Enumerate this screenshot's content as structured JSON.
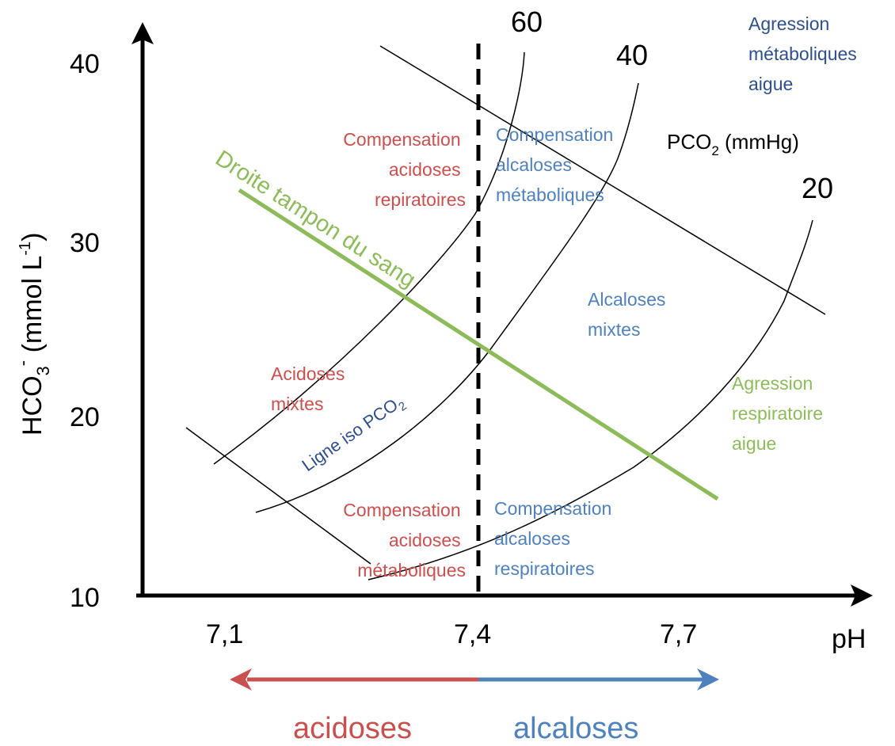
{
  "axes": {
    "y_title_main": "HCO",
    "y_title_sub": "3",
    "y_title_sup": "-",
    "y_title_units": " (mmol L",
    "y_title_units_sup": "-1",
    "y_title_close": ")",
    "x_title": "pH",
    "x_ticks": [
      "7,1",
      "7,4",
      "7,7"
    ],
    "y_ticks": [
      "40",
      "30",
      "20",
      "10"
    ]
  },
  "isobars": {
    "label_60": "60",
    "label_40": "40",
    "label_20": "20",
    "legend_main": "PCO",
    "legend_sub": "2",
    "legend_units": " (mmHg)"
  },
  "buffer_line": {
    "label": "Droite tampon du sang",
    "color": "#8dbb5a"
  },
  "iso_line": {
    "label_main": "Ligne iso PCO",
    "label_sub": "2",
    "color": "#2f4f8c"
  },
  "regions": {
    "agression_metabolique": [
      "Agression",
      "métaboliques",
      "aigue"
    ],
    "comp_acidoses_resp": [
      "Compensation",
      "acidoses",
      "repiratoires"
    ],
    "comp_alcaloses_meta": [
      "Compensation",
      "alcaloses",
      "métaboliques"
    ],
    "alcaloses_mixtes": [
      "Alcaloses",
      "mixtes"
    ],
    "acidoses_mixtes": [
      "Acidoses",
      "mixtes"
    ],
    "agression_respiratoire": [
      "Agression",
      "respiratoire",
      "aigue"
    ],
    "comp_acidoses_meta": [
      "Compensation",
      "acidoses",
      "métaboliques"
    ],
    "comp_alcaloses_resp": [
      "Compensation",
      "alcaloses",
      "respiratoires"
    ]
  },
  "bottom": {
    "acidoses": "acidoses",
    "alcaloses": "alcaloses"
  },
  "colors": {
    "acid_red": "#c9504f",
    "alk_blue": "#4f81bd",
    "dark_blue": "#2f4f8c",
    "green": "#8dbb5a",
    "axis": "#000000"
  }
}
